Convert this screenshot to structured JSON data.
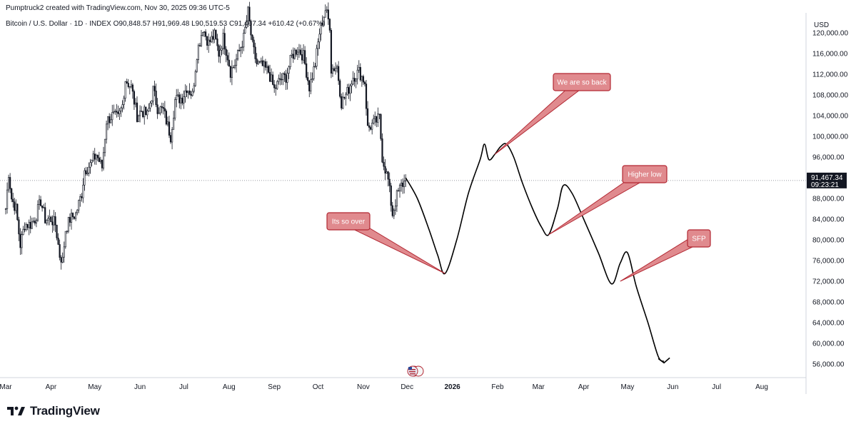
{
  "header": {
    "attribution": "Pumptruck2 created with TradingView.com, Nov 30, 2025 09:36 UTC-5",
    "symbol_line": "Bitcoin / U.S. Dollar · 1D · INDEX  O90,848.57  H91,969.48  L90,519.53  C91,467.34  +610.42 (+0.67%)"
  },
  "price_axis": {
    "currency": "USD",
    "current_price": "91,467.34",
    "countdown": "09:23:21"
  },
  "brand": {
    "logo_text": "TradingView"
  },
  "colors": {
    "candle": "#131722",
    "annotation_fill": "#e08a8e",
    "annotation_stroke": "#b22833",
    "projection": "#000000",
    "grid_axis": "#d1d4dc"
  },
  "chart_data": {
    "type": "line",
    "title": "Bitcoin / U.S. Dollar · 1D · INDEX",
    "xlabel": "",
    "ylabel": "",
    "ylim": [
      52000,
      127000
    ],
    "y_ticks": [
      56000,
      60000,
      64000,
      68000,
      72000,
      76000,
      80000,
      84000,
      88000,
      92000,
      96000,
      100000,
      104000,
      108000,
      112000,
      116000,
      120000
    ],
    "y_tick_labels": [
      "56,000.00",
      "60,000.00",
      "64,000.00",
      "68,000.00",
      "72,000.00",
      "76,000.00",
      "80,000.00",
      "84,000.00",
      "88,000.00",
      "92,000.00",
      "96,000.00",
      "100,000.00",
      "104,000.00",
      "108,000.00",
      "112,000.00",
      "116,000.00",
      "120,000.00"
    ],
    "x_ticks": [
      {
        "label": "Mar",
        "date": "2025-03-01"
      },
      {
        "label": "Apr",
        "date": "2025-04-01"
      },
      {
        "label": "May",
        "date": "2025-05-01"
      },
      {
        "label": "Jun",
        "date": "2025-06-01"
      },
      {
        "label": "Jul",
        "date": "2025-07-01"
      },
      {
        "label": "Aug",
        "date": "2025-08-01"
      },
      {
        "label": "Sep",
        "date": "2025-09-01"
      },
      {
        "label": "Oct",
        "date": "2025-10-01"
      },
      {
        "label": "Nov",
        "date": "2025-11-01"
      },
      {
        "label": "Dec",
        "date": "2025-12-01"
      },
      {
        "label": "2026",
        "date": "2026-01-01",
        "bold": true
      },
      {
        "label": "Feb",
        "date": "2026-02-01"
      },
      {
        "label": "Mar",
        "date": "2026-03-01"
      },
      {
        "label": "Apr",
        "date": "2026-04-01"
      },
      {
        "label": "May",
        "date": "2026-05-01"
      },
      {
        "label": "Jun",
        "date": "2026-06-01"
      },
      {
        "label": "Jul",
        "date": "2026-07-01"
      },
      {
        "label": "Aug",
        "date": "2026-08-01"
      }
    ],
    "last_price": 91467.34,
    "series": [
      {
        "kind": "price",
        "points": [
          [
            "2025-03-01",
            86000
          ],
          [
            "2025-03-03",
            93000
          ],
          [
            "2025-03-05",
            88000
          ],
          [
            "2025-03-08",
            86000
          ],
          [
            "2025-03-11",
            79000
          ],
          [
            "2025-03-14",
            83000
          ],
          [
            "2025-03-18",
            83000
          ],
          [
            "2025-03-21",
            84000
          ],
          [
            "2025-03-25",
            87500
          ],
          [
            "2025-03-28",
            84000
          ],
          [
            "2025-04-01",
            84000
          ],
          [
            "2025-04-04",
            83000
          ],
          [
            "2025-04-07",
            77000
          ],
          [
            "2025-04-09",
            76000
          ],
          [
            "2025-04-11",
            82000
          ],
          [
            "2025-04-14",
            84000
          ],
          [
            "2025-04-18",
            85000
          ],
          [
            "2025-04-22",
            89000
          ],
          [
            "2025-04-24",
            93500
          ],
          [
            "2025-04-28",
            94500
          ],
          [
            "2025-05-02",
            96500
          ],
          [
            "2025-05-06",
            94000
          ],
          [
            "2025-05-09",
            103000
          ],
          [
            "2025-05-13",
            104000
          ],
          [
            "2025-05-17",
            103500
          ],
          [
            "2025-05-20",
            106000
          ],
          [
            "2025-05-22",
            111000
          ],
          [
            "2025-05-26",
            109500
          ],
          [
            "2025-05-30",
            104000
          ],
          [
            "2025-06-02",
            105000
          ],
          [
            "2025-06-06",
            104000
          ],
          [
            "2025-06-10",
            109000
          ],
          [
            "2025-06-13",
            105500
          ],
          [
            "2025-06-17",
            105000
          ],
          [
            "2025-06-22",
            100000
          ],
          [
            "2025-06-25",
            107000
          ],
          [
            "2025-06-30",
            107500
          ],
          [
            "2025-07-03",
            109500
          ],
          [
            "2025-07-07",
            108000
          ],
          [
            "2025-07-10",
            116000
          ],
          [
            "2025-07-14",
            121000
          ],
          [
            "2025-07-18",
            118000
          ],
          [
            "2025-07-22",
            119500
          ],
          [
            "2025-07-25",
            116000
          ],
          [
            "2025-07-28",
            119000
          ],
          [
            "2025-07-31",
            115500
          ],
          [
            "2025-08-02",
            112500
          ],
          [
            "2025-08-05",
            114000
          ],
          [
            "2025-08-08",
            116500
          ],
          [
            "2025-08-11",
            119000
          ],
          [
            "2025-08-14",
            124000
          ],
          [
            "2025-08-17",
            117500
          ],
          [
            "2025-08-20",
            114000
          ],
          [
            "2025-08-24",
            113500
          ],
          [
            "2025-08-28",
            112500
          ],
          [
            "2025-09-01",
            109000
          ],
          [
            "2025-09-05",
            111000
          ],
          [
            "2025-09-09",
            111500
          ],
          [
            "2025-09-13",
            115500
          ],
          [
            "2025-09-17",
            117000
          ],
          [
            "2025-09-21",
            115500
          ],
          [
            "2025-09-25",
            109500
          ],
          [
            "2025-09-29",
            114000
          ],
          [
            "2025-10-02",
            120000
          ],
          [
            "2025-10-06",
            124500
          ],
          [
            "2025-10-09",
            121500
          ],
          [
            "2025-10-10",
            113000
          ],
          [
            "2025-10-14",
            113500
          ],
          [
            "2025-10-17",
            106500
          ],
          [
            "2025-10-21",
            108500
          ],
          [
            "2025-10-25",
            111500
          ],
          [
            "2025-10-29",
            112500
          ],
          [
            "2025-11-02",
            110500
          ],
          [
            "2025-11-04",
            101500
          ],
          [
            "2025-11-08",
            102500
          ],
          [
            "2025-11-12",
            103500
          ],
          [
            "2025-11-14",
            96000
          ],
          [
            "2025-11-18",
            91500
          ],
          [
            "2025-11-21",
            85000
          ],
          [
            "2025-11-24",
            88500
          ],
          [
            "2025-11-27",
            90500
          ],
          [
            "2025-11-30",
            91467
          ]
        ]
      },
      {
        "kind": "projection",
        "points": [
          [
            "2025-11-30",
            92000
          ],
          [
            "2025-12-08",
            88000
          ],
          [
            "2025-12-16",
            82000
          ],
          [
            "2025-12-22",
            77000
          ],
          [
            "2025-12-27",
            73500
          ],
          [
            "2026-01-04",
            80000
          ],
          [
            "2026-01-12",
            89000
          ],
          [
            "2026-01-20",
            95500
          ],
          [
            "2026-01-23",
            98500
          ],
          [
            "2026-01-26",
            95500
          ],
          [
            "2026-01-30",
            96500
          ],
          [
            "2026-02-03",
            98000
          ],
          [
            "2026-02-07",
            98500
          ],
          [
            "2026-02-12",
            96000
          ],
          [
            "2026-02-18",
            91000
          ],
          [
            "2026-02-25",
            86000
          ],
          [
            "2026-03-03",
            82500
          ],
          [
            "2026-03-08",
            81000
          ],
          [
            "2026-03-14",
            86000
          ],
          [
            "2026-03-18",
            90500
          ],
          [
            "2026-03-24",
            89000
          ],
          [
            "2026-04-01",
            84000
          ],
          [
            "2026-04-11",
            77500
          ],
          [
            "2026-04-20",
            71500
          ],
          [
            "2026-04-26",
            75500
          ],
          [
            "2026-05-01",
            77500
          ],
          [
            "2026-05-07",
            71000
          ],
          [
            "2026-05-15",
            64000
          ],
          [
            "2026-05-22",
            57500
          ],
          [
            "2026-05-26",
            56500
          ]
        ]
      }
    ],
    "annotations": [
      {
        "text": "Its so over",
        "target": [
          "2025-12-27",
          73500
        ]
      },
      {
        "text": "We are so back",
        "target": [
          "2026-01-30",
          96500
        ]
      },
      {
        "text": "Higher low",
        "target": [
          "2026-03-08",
          81000
        ]
      },
      {
        "text": "SFP",
        "target": [
          "2026-04-26",
          72000
        ]
      }
    ]
  }
}
